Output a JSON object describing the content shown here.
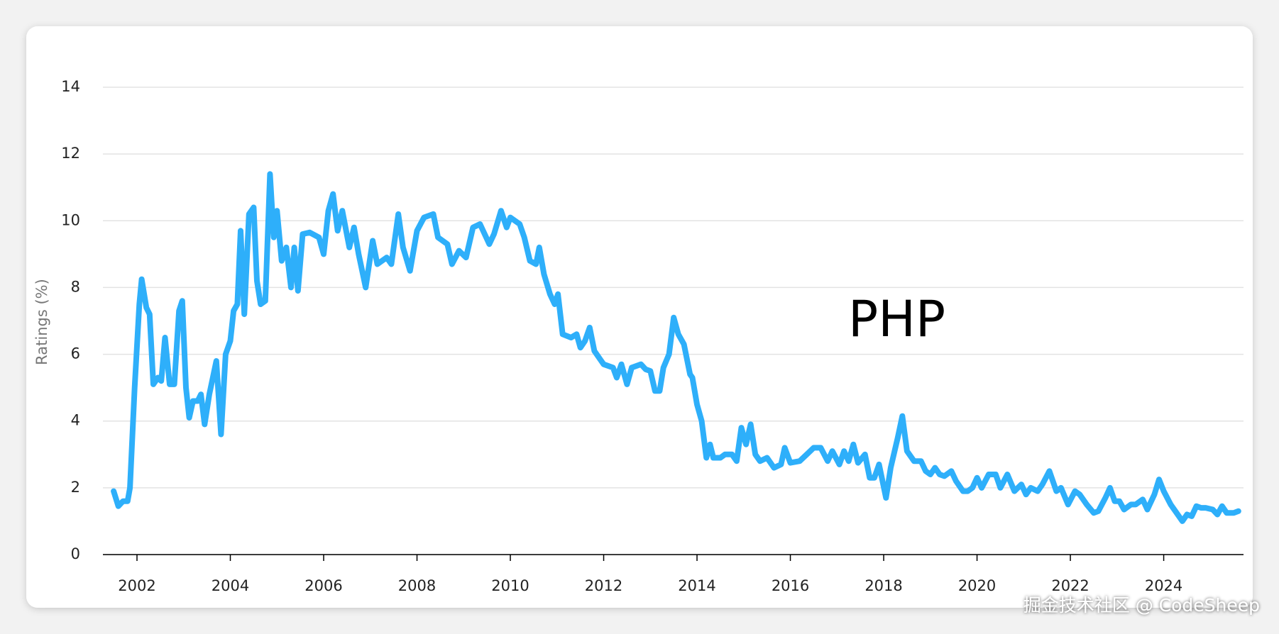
{
  "chart_data": {
    "type": "line",
    "ylabel": "Ratings (%)",
    "annotation": "PHP",
    "watermark": "掘金技术社区 @ CodeSheep",
    "xlim": [
      2001.27,
      2025.71
    ],
    "xticks": [
      2002,
      2004,
      2006,
      2008,
      2010,
      2012,
      2014,
      2016,
      2018,
      2020,
      2022,
      2024
    ],
    "ylim": [
      0,
      14
    ],
    "yticks": [
      0,
      2,
      4,
      6,
      8,
      10,
      12,
      14
    ],
    "grid": true,
    "x": [
      2001.5,
      2001.6,
      2001.7,
      2001.8,
      2001.85,
      2001.95,
      2002.05,
      2002.1,
      2002.2,
      2002.27,
      2002.35,
      2002.45,
      2002.52,
      2002.6,
      2002.7,
      2002.8,
      2002.9,
      2002.97,
      2003.05,
      2003.12,
      2003.2,
      2003.3,
      2003.37,
      2003.45,
      2003.55,
      2003.7,
      2003.8,
      2003.9,
      2004.0,
      2004.07,
      2004.15,
      2004.22,
      2004.3,
      2004.4,
      2004.5,
      2004.57,
      2004.65,
      2004.75,
      2004.85,
      2004.93,
      2005.0,
      2005.1,
      2005.2,
      2005.3,
      2005.37,
      2005.45,
      2005.55,
      2005.7,
      2005.9,
      2006.0,
      2006.1,
      2006.2,
      2006.3,
      2006.4,
      2006.55,
      2006.65,
      2006.75,
      2006.9,
      2007.05,
      2007.15,
      2007.35,
      2007.45,
      2007.6,
      2007.7,
      2007.85,
      2008.0,
      2008.15,
      2008.35,
      2008.45,
      2008.65,
      2008.75,
      2008.9,
      2009.05,
      2009.2,
      2009.35,
      2009.55,
      2009.65,
      2009.8,
      2009.92,
      2010.0,
      2010.2,
      2010.3,
      2010.42,
      2010.55,
      2010.62,
      2010.72,
      2010.85,
      2010.95,
      2011.02,
      2011.12,
      2011.3,
      2011.42,
      2011.5,
      2011.6,
      2011.7,
      2011.8,
      2011.95,
      2012.0,
      2012.2,
      2012.28,
      2012.38,
      2012.5,
      2012.6,
      2012.8,
      2012.9,
      2013.0,
      2013.1,
      2013.2,
      2013.28,
      2013.4,
      2013.5,
      2013.6,
      2013.72,
      2013.85,
      2013.9,
      2014.0,
      2014.1,
      2014.2,
      2014.28,
      2014.35,
      2014.5,
      2014.6,
      2014.75,
      2014.85,
      2014.95,
      2015.05,
      2015.15,
      2015.25,
      2015.35,
      2015.5,
      2015.65,
      2015.8,
      2015.88,
      2016.0,
      2016.2,
      2016.35,
      2016.5,
      2016.65,
      2016.8,
      2016.9,
      2017.05,
      2017.15,
      2017.25,
      2017.35,
      2017.45,
      2017.6,
      2017.7,
      2017.8,
      2017.9,
      2018.05,
      2018.15,
      2018.3,
      2018.4,
      2018.5,
      2018.65,
      2018.8,
      2018.9,
      2019.0,
      2019.1,
      2019.2,
      2019.3,
      2019.45,
      2019.55,
      2019.7,
      2019.8,
      2019.9,
      2020.0,
      2020.1,
      2020.25,
      2020.4,
      2020.5,
      2020.65,
      2020.8,
      2020.95,
      2021.05,
      2021.15,
      2021.3,
      2021.4,
      2021.55,
      2021.7,
      2021.8,
      2021.95,
      2022.1,
      2022.2,
      2022.35,
      2022.5,
      2022.6,
      2022.75,
      2022.85,
      2022.95,
      2023.05,
      2023.15,
      2023.3,
      2023.4,
      2023.55,
      2023.65,
      2023.8,
      2023.9,
      2024.0,
      2024.15,
      2024.25,
      2024.4,
      2024.5,
      2024.6,
      2024.7,
      2024.8,
      2024.9,
      2025.05,
      2025.15,
      2025.25,
      2025.35,
      2025.5,
      2025.6
    ],
    "series": [
      {
        "name": "PHP",
        "color": "#2eaffa",
        "values": [
          1.9,
          1.45,
          1.6,
          1.6,
          2.0,
          5.0,
          7.5,
          8.25,
          7.4,
          7.2,
          5.1,
          5.3,
          5.2,
          6.5,
          5.1,
          5.1,
          7.3,
          7.6,
          5.0,
          4.1,
          4.6,
          4.6,
          4.8,
          3.9,
          4.8,
          5.8,
          3.6,
          6.0,
          6.4,
          7.3,
          7.5,
          9.7,
          7.2,
          10.2,
          10.4,
          8.2,
          7.5,
          7.6,
          11.4,
          9.5,
          10.3,
          8.8,
          9.2,
          8.0,
          9.2,
          7.9,
          9.6,
          9.65,
          9.5,
          9.0,
          10.3,
          10.8,
          9.7,
          10.3,
          9.2,
          9.8,
          9.0,
          8.0,
          9.4,
          8.7,
          8.9,
          8.7,
          10.2,
          9.2,
          8.5,
          9.7,
          10.1,
          10.2,
          9.5,
          9.3,
          8.7,
          9.1,
          8.9,
          9.8,
          9.9,
          9.3,
          9.6,
          10.3,
          9.8,
          10.1,
          9.9,
          9.5,
          8.8,
          8.7,
          9.2,
          8.4,
          7.8,
          7.5,
          7.8,
          6.6,
          6.5,
          6.6,
          6.2,
          6.4,
          6.8,
          6.1,
          5.8,
          5.7,
          5.6,
          5.3,
          5.7,
          5.1,
          5.6,
          5.7,
          5.55,
          5.5,
          4.9,
          4.9,
          5.6,
          6.0,
          7.1,
          6.6,
          6.3,
          5.4,
          5.3,
          4.5,
          4.0,
          2.9,
          3.3,
          2.9,
          2.9,
          3.0,
          3.0,
          2.8,
          3.8,
          3.3,
          3.9,
          3.0,
          2.8,
          2.9,
          2.6,
          2.7,
          3.2,
          2.75,
          2.8,
          3.0,
          3.2,
          3.2,
          2.8,
          3.1,
          2.7,
          3.1,
          2.8,
          3.3,
          2.75,
          3.0,
          2.3,
          2.3,
          2.7,
          1.7,
          2.6,
          3.5,
          4.15,
          3.1,
          2.8,
          2.8,
          2.5,
          2.4,
          2.6,
          2.4,
          2.35,
          2.5,
          2.2,
          1.9,
          1.9,
          2.0,
          2.3,
          2.0,
          2.4,
          2.4,
          2.0,
          2.4,
          1.9,
          2.1,
          1.8,
          2.0,
          1.9,
          2.1,
          2.5,
          1.9,
          2.0,
          1.5,
          1.9,
          1.8,
          1.5,
          1.25,
          1.3,
          1.7,
          2.0,
          1.6,
          1.6,
          1.35,
          1.5,
          1.5,
          1.65,
          1.35,
          1.8,
          2.25,
          1.9,
          1.5,
          1.3,
          1.0,
          1.2,
          1.15,
          1.45,
          1.4,
          1.4,
          1.35,
          1.2,
          1.45,
          1.25,
          1.25,
          1.3
        ]
      }
    ]
  }
}
